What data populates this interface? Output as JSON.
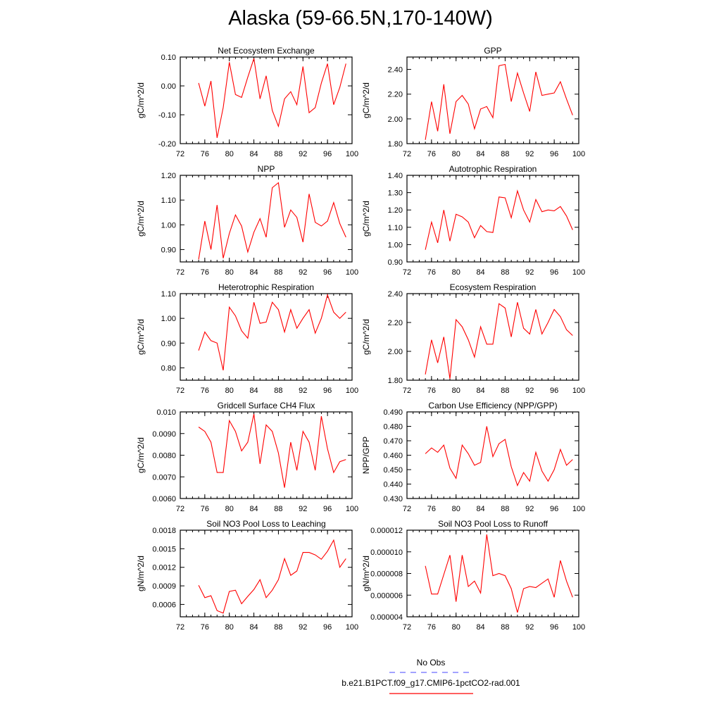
{
  "title": "Alaska (59-66.5N,170-140W)",
  "colors": {
    "model": "#ff0000",
    "obs": "#6a6aff",
    "axis": "#000000"
  },
  "legend": {
    "obs_label": "No Obs",
    "model_label": "b.e21.B1PCT.f09_g17.CMIP6-1pctCO2-rad.001"
  },
  "chart_data": [
    {
      "type": "line",
      "title": "Net Ecosystem Exchange",
      "ylabel": "gC/m^2/d",
      "xlim": [
        72,
        100
      ],
      "ylim": [
        -0.2,
        0.1
      ],
      "xticks": [
        "72",
        "76",
        "80",
        "84",
        "88",
        "92",
        "96",
        "100"
      ],
      "yticks": [
        "-0.20",
        "-0.10",
        "0.00",
        "0.10"
      ],
      "x": [
        75,
        76,
        77,
        78,
        79,
        80,
        81,
        82,
        83,
        84,
        85,
        86,
        87,
        88,
        89,
        90,
        91,
        92,
        93,
        94,
        95,
        96,
        97,
        98,
        99
      ],
      "series": [
        {
          "values": [
            0.01,
            -0.07,
            0.017,
            -0.18,
            -0.075,
            0.082,
            -0.03,
            -0.04,
            0.03,
            0.095,
            -0.045,
            0.035,
            -0.085,
            -0.14,
            -0.045,
            -0.02,
            -0.065,
            0.067,
            -0.093,
            -0.075,
            0.01,
            0.077,
            -0.065,
            -0.005,
            0.077
          ]
        }
      ]
    },
    {
      "type": "line",
      "title": "GPP",
      "ylabel": "gC/m^2/d",
      "xlim": [
        72,
        100
      ],
      "ylim": [
        1.8,
        2.5
      ],
      "xticks": [
        "72",
        "76",
        "80",
        "84",
        "88",
        "92",
        "96",
        "100"
      ],
      "yticks": [
        "1.80",
        "2.00",
        "2.20",
        "2.40"
      ],
      "x": [
        75,
        76,
        77,
        78,
        79,
        80,
        81,
        82,
        83,
        84,
        85,
        86,
        87,
        88,
        89,
        90,
        91,
        92,
        93,
        94,
        95,
        96,
        97,
        98,
        99
      ],
      "series": [
        {
          "values": [
            1.83,
            2.14,
            1.9,
            2.28,
            1.88,
            2.14,
            2.19,
            2.12,
            1.92,
            2.08,
            2.1,
            2.01,
            2.43,
            2.44,
            2.14,
            2.37,
            2.21,
            2.06,
            2.38,
            2.19,
            2.2,
            2.21,
            2.3,
            2.16,
            2.03
          ]
        }
      ]
    },
    {
      "type": "line",
      "title": "NPP",
      "ylabel": "gC/m^2/d",
      "xlim": [
        72,
        100
      ],
      "ylim": [
        0.85,
        1.2
      ],
      "xticks": [
        "72",
        "76",
        "80",
        "84",
        "88",
        "92",
        "96",
        "100"
      ],
      "yticks": [
        "0.90",
        "1.00",
        "1.10",
        "1.20"
      ],
      "x": [
        75,
        76,
        77,
        78,
        79,
        80,
        81,
        82,
        83,
        84,
        85,
        86,
        87,
        88,
        89,
        90,
        91,
        92,
        93,
        94,
        95,
        96,
        97,
        98,
        99
      ],
      "series": [
        {
          "values": [
            0.86,
            1.015,
            0.9,
            1.08,
            0.865,
            0.965,
            1.04,
            0.995,
            0.89,
            0.97,
            1.025,
            0.95,
            1.15,
            1.17,
            0.99,
            1.06,
            1.03,
            0.93,
            1.125,
            1.01,
            0.995,
            1.015,
            1.09,
            1.005,
            0.95
          ]
        }
      ]
    },
    {
      "type": "line",
      "title": "Autotrophic Respiration",
      "ylabel": "gC/m^2/d",
      "xlim": [
        72,
        100
      ],
      "ylim": [
        0.9,
        1.4
      ],
      "xticks": [
        "72",
        "76",
        "80",
        "84",
        "88",
        "92",
        "96",
        "100"
      ],
      "yticks": [
        "0.90",
        "1.00",
        "1.10",
        "1.20",
        "1.30",
        "1.40"
      ],
      "x": [
        75,
        76,
        77,
        78,
        79,
        80,
        81,
        82,
        83,
        84,
        85,
        86,
        87,
        88,
        89,
        90,
        91,
        92,
        93,
        94,
        95,
        96,
        97,
        98,
        99
      ],
      "series": [
        {
          "values": [
            0.97,
            1.13,
            1.01,
            1.2,
            1.02,
            1.175,
            1.16,
            1.13,
            1.04,
            1.11,
            1.075,
            1.07,
            1.275,
            1.27,
            1.155,
            1.31,
            1.2,
            1.13,
            1.26,
            1.19,
            1.2,
            1.195,
            1.22,
            1.165,
            1.085
          ]
        }
      ]
    },
    {
      "type": "line",
      "title": "Heterotrophic Respiration",
      "ylabel": "gC/m^2/d",
      "xlim": [
        72,
        100
      ],
      "ylim": [
        0.75,
        1.1
      ],
      "xticks": [
        "72",
        "76",
        "80",
        "84",
        "88",
        "92",
        "96",
        "100"
      ],
      "yticks": [
        "0.80",
        "0.90",
        "1.00",
        "1.10"
      ],
      "x": [
        75,
        76,
        77,
        78,
        79,
        80,
        81,
        82,
        83,
        84,
        85,
        86,
        87,
        88,
        89,
        90,
        91,
        92,
        93,
        94,
        95,
        96,
        97,
        98,
        99
      ],
      "series": [
        {
          "values": [
            0.87,
            0.945,
            0.91,
            0.9,
            0.79,
            1.045,
            1.01,
            0.95,
            0.92,
            1.065,
            0.98,
            0.985,
            1.065,
            1.035,
            0.945,
            1.035,
            0.96,
            1.0,
            1.035,
            0.94,
            1.0,
            1.095,
            1.025,
            1.0,
            1.025
          ]
        }
      ]
    },
    {
      "type": "line",
      "title": "Ecosystem Respiration",
      "ylabel": "gC/m^2/d",
      "xlim": [
        72,
        100
      ],
      "ylim": [
        1.8,
        2.4
      ],
      "xticks": [
        "72",
        "76",
        "80",
        "84",
        "88",
        "92",
        "96",
        "100"
      ],
      "yticks": [
        "1.80",
        "2.00",
        "2.20",
        "2.40"
      ],
      "x": [
        75,
        76,
        77,
        78,
        79,
        80,
        81,
        82,
        83,
        84,
        85,
        86,
        87,
        88,
        89,
        90,
        91,
        92,
        93,
        94,
        95,
        96,
        97,
        98,
        99
      ],
      "series": [
        {
          "values": [
            1.84,
            2.08,
            1.92,
            2.1,
            1.81,
            2.22,
            2.17,
            2.08,
            1.96,
            2.17,
            2.05,
            2.05,
            2.33,
            2.3,
            2.1,
            2.34,
            2.16,
            2.12,
            2.29,
            2.12,
            2.2,
            2.29,
            2.24,
            2.15,
            2.11
          ]
        }
      ]
    },
    {
      "type": "line",
      "title": "Gridcell Surface CH4 Flux",
      "ylabel": "gC/m^2/d",
      "xlim": [
        72,
        100
      ],
      "ylim": [
        0.006,
        0.01
      ],
      "xticks": [
        "72",
        "76",
        "80",
        "84",
        "88",
        "92",
        "96",
        "100"
      ],
      "yticks": [
        "0.0060",
        "0.0070",
        "0.0080",
        "0.0090",
        "0.010"
      ],
      "x": [
        75,
        76,
        77,
        78,
        79,
        80,
        81,
        82,
        83,
        84,
        85,
        86,
        87,
        88,
        89,
        90,
        91,
        92,
        93,
        94,
        95,
        96,
        97,
        98,
        99
      ],
      "series": [
        {
          "values": [
            0.0093,
            0.0091,
            0.0086,
            0.0072,
            0.0072,
            0.0096,
            0.0091,
            0.0082,
            0.0086,
            0.0099,
            0.0076,
            0.0094,
            0.0091,
            0.0081,
            0.0065,
            0.0086,
            0.0073,
            0.0091,
            0.0086,
            0.0073,
            0.0098,
            0.0083,
            0.0072,
            0.0077,
            0.0078
          ]
        }
      ]
    },
    {
      "type": "line",
      "title": "Carbon Use Efficiency (NPP/GPP)",
      "ylabel": "NPP/GPP",
      "xlim": [
        72,
        100
      ],
      "ylim": [
        0.43,
        0.49
      ],
      "xticks": [
        "72",
        "76",
        "80",
        "84",
        "88",
        "92",
        "96",
        "100"
      ],
      "yticks": [
        "0.430",
        "0.440",
        "0.450",
        "0.460",
        "0.470",
        "0.480",
        "0.490"
      ],
      "x": [
        75,
        76,
        77,
        78,
        79,
        80,
        81,
        82,
        83,
        84,
        85,
        86,
        87,
        88,
        89,
        90,
        91,
        92,
        93,
        94,
        95,
        96,
        97,
        98,
        99
      ],
      "series": [
        {
          "values": [
            0.461,
            0.465,
            0.462,
            0.467,
            0.451,
            0.444,
            0.467,
            0.461,
            0.453,
            0.455,
            0.48,
            0.459,
            0.468,
            0.471,
            0.452,
            0.439,
            0.448,
            0.442,
            0.462,
            0.449,
            0.442,
            0.45,
            0.464,
            0.453,
            0.457
          ]
        }
      ]
    },
    {
      "type": "line",
      "title": "Soil NO3 Pool Loss to Leaching",
      "ylabel": "gN/m^2/d",
      "xlim": [
        72,
        100
      ],
      "ylim": [
        0.0004,
        0.0018
      ],
      "xticks": [
        "72",
        "76",
        "80",
        "84",
        "88",
        "92",
        "96",
        "100"
      ],
      "yticks": [
        "0.0006",
        "0.0009",
        "0.0012",
        "0.0015",
        "0.0018"
      ],
      "x": [
        75,
        76,
        77,
        78,
        79,
        80,
        81,
        82,
        83,
        84,
        85,
        86,
        87,
        88,
        89,
        90,
        91,
        92,
        93,
        94,
        95,
        96,
        97,
        98,
        99
      ],
      "series": [
        {
          "values": [
            0.00091,
            0.00071,
            0.00074,
            0.0005,
            0.00046,
            0.00081,
            0.00083,
            0.00061,
            0.00073,
            0.00084,
            0.001,
            0.00071,
            0.00083,
            0.001,
            0.00134,
            0.00107,
            0.00114,
            0.00144,
            0.00144,
            0.0014,
            0.00133,
            0.00146,
            0.00164,
            0.0012,
            0.00134
          ]
        }
      ]
    },
    {
      "type": "line",
      "title": "Soil NO3 Pool Loss to Runoff",
      "ylabel": "gN/m^2/d",
      "xlim": [
        72,
        100
      ],
      "ylim": [
        4e-06,
        1.2e-05
      ],
      "xticks": [
        "72",
        "76",
        "80",
        "84",
        "88",
        "92",
        "96",
        "100"
      ],
      "yticks": [
        "0.000004",
        "0.000006",
        "0.000008",
        "0.000010",
        "0.000012"
      ],
      "x": [
        75,
        76,
        77,
        78,
        79,
        80,
        81,
        82,
        83,
        84,
        85,
        86,
        87,
        88,
        89,
        90,
        91,
        92,
        93,
        94,
        95,
        96,
        97,
        98,
        99
      ],
      "series": [
        {
          "values": [
            8.7e-06,
            6.1e-06,
            6.1e-06,
            7.9e-06,
            9.7e-06,
            5.4e-06,
            9.7e-06,
            6.8e-06,
            7.3e-06,
            6.2e-06,
            1.16e-05,
            7.8e-06,
            8e-06,
            7.8e-06,
            6.6e-06,
            4.4e-06,
            6.6e-06,
            6.8e-06,
            6.7e-06,
            7.1e-06,
            7.5e-06,
            5.8e-06,
            9.2e-06,
            7.3e-06,
            5.8e-06
          ]
        }
      ]
    }
  ]
}
